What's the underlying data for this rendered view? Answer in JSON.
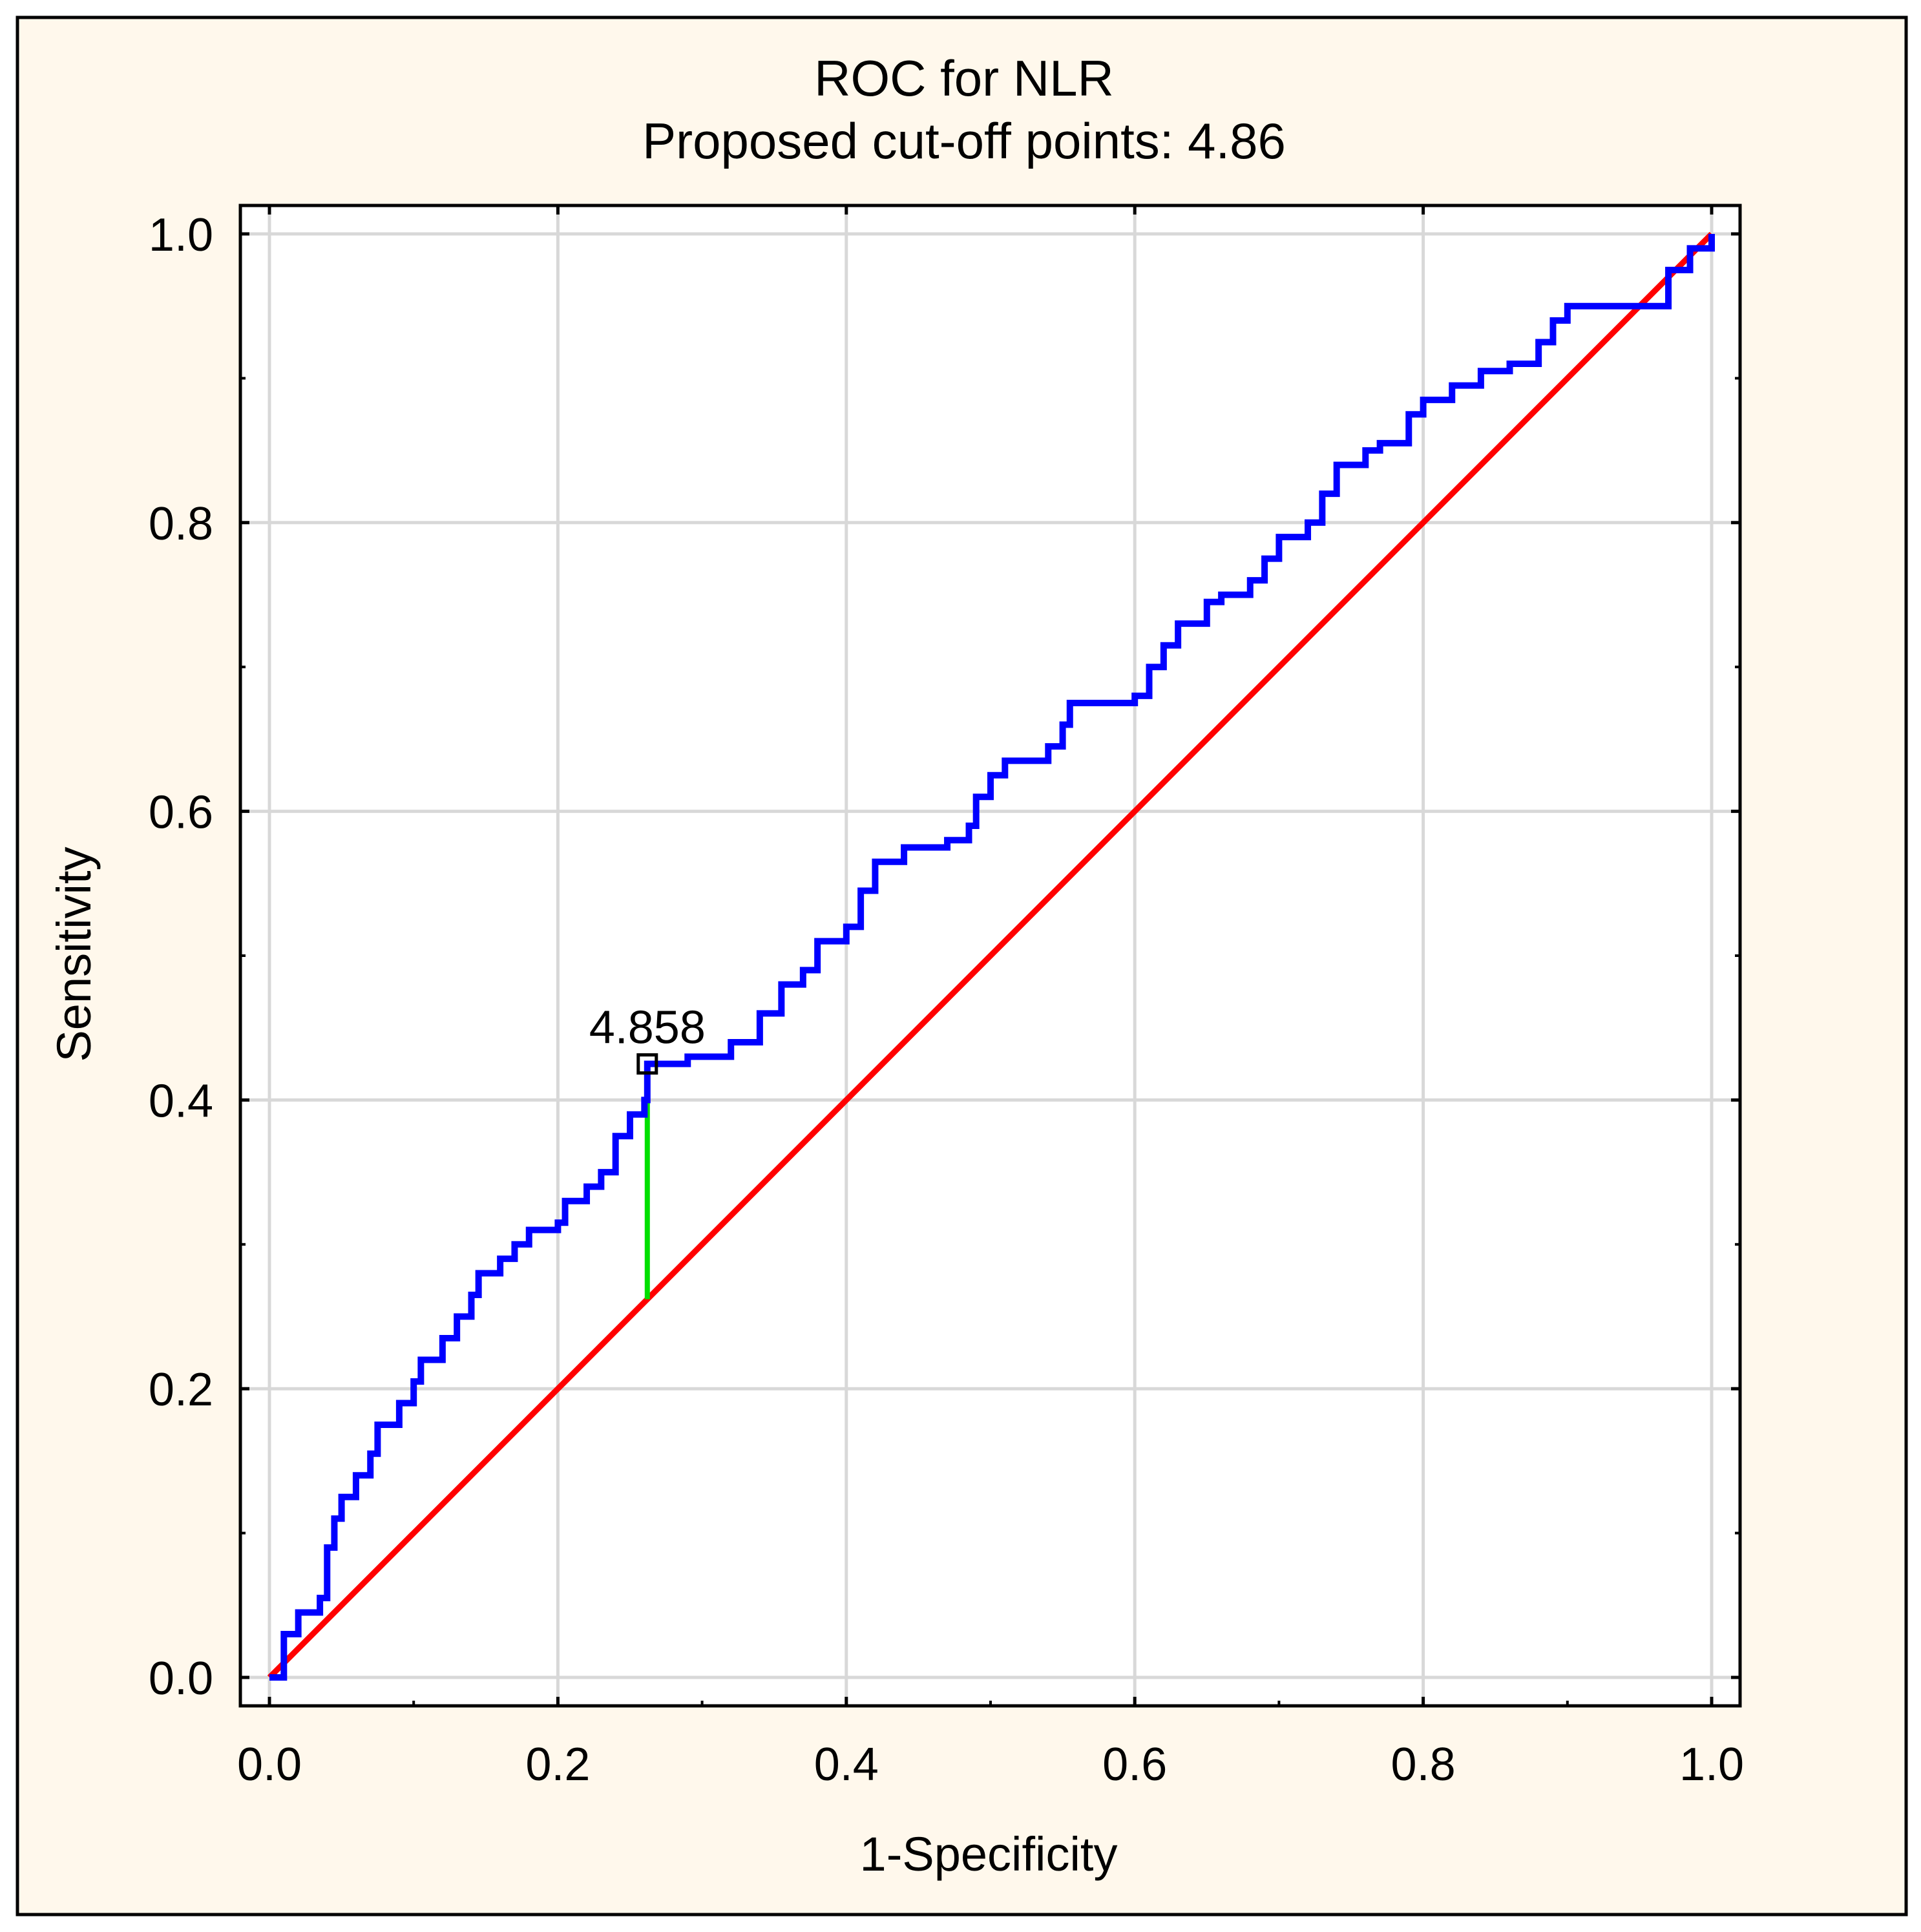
{
  "chart_data": {
    "type": "line",
    "title": "ROC for NLR",
    "subtitle": "Proposed cut-off points: 4.86",
    "xlabel": "1-Specificity",
    "ylabel": "Sensitivity",
    "xlim": [
      0,
      1
    ],
    "ylim": [
      0,
      1
    ],
    "xticks": [
      "0.0",
      "0.2",
      "0.4",
      "0.6",
      "0.8",
      "1.0"
    ],
    "yticks": [
      "0.0",
      "0.2",
      "0.4",
      "0.6",
      "0.8",
      "1.0"
    ],
    "grid": true,
    "legend": "none",
    "series": [
      {
        "role": "roc-curve",
        "color": "#0000ff",
        "points": [
          [
            0,
            0
          ],
          [
            0.01,
            0.03
          ],
          [
            0.02,
            0.045
          ],
          [
            0.035,
            0.055
          ],
          [
            0.04,
            0.09
          ],
          [
            0.045,
            0.11
          ],
          [
            0.05,
            0.125
          ],
          [
            0.06,
            0.14
          ],
          [
            0.07,
            0.155
          ],
          [
            0.075,
            0.175
          ],
          [
            0.09,
            0.19
          ],
          [
            0.1,
            0.205
          ],
          [
            0.105,
            0.22
          ],
          [
            0.12,
            0.235
          ],
          [
            0.13,
            0.25
          ],
          [
            0.14,
            0.265
          ],
          [
            0.145,
            0.28
          ],
          [
            0.16,
            0.29
          ],
          [
            0.17,
            0.3
          ],
          [
            0.18,
            0.31
          ],
          [
            0.2,
            0.315
          ],
          [
            0.205,
            0.33
          ],
          [
            0.22,
            0.34
          ],
          [
            0.23,
            0.35
          ],
          [
            0.24,
            0.375
          ],
          [
            0.25,
            0.39
          ],
          [
            0.26,
            0.4
          ],
          [
            0.262,
            0.425
          ],
          [
            0.29,
            0.43
          ],
          [
            0.32,
            0.44
          ],
          [
            0.34,
            0.46
          ],
          [
            0.355,
            0.48
          ],
          [
            0.37,
            0.49
          ],
          [
            0.38,
            0.51
          ],
          [
            0.4,
            0.52
          ],
          [
            0.41,
            0.545
          ],
          [
            0.42,
            0.565
          ],
          [
            0.44,
            0.575
          ],
          [
            0.47,
            0.58
          ],
          [
            0.485,
            0.59
          ],
          [
            0.49,
            0.61
          ],
          [
            0.5,
            0.625
          ],
          [
            0.51,
            0.635
          ],
          [
            0.54,
            0.645
          ],
          [
            0.55,
            0.66
          ],
          [
            0.555,
            0.675
          ],
          [
            0.6,
            0.68
          ],
          [
            0.61,
            0.7
          ],
          [
            0.62,
            0.715
          ],
          [
            0.63,
            0.73
          ],
          [
            0.65,
            0.745
          ],
          [
            0.66,
            0.75
          ],
          [
            0.68,
            0.76
          ],
          [
            0.69,
            0.775
          ],
          [
            0.7,
            0.79
          ],
          [
            0.72,
            0.8
          ],
          [
            0.73,
            0.82
          ],
          [
            0.74,
            0.84
          ],
          [
            0.76,
            0.85
          ],
          [
            0.77,
            0.855
          ],
          [
            0.79,
            0.875
          ],
          [
            0.8,
            0.885
          ],
          [
            0.82,
            0.895
          ],
          [
            0.84,
            0.905
          ],
          [
            0.86,
            0.91
          ],
          [
            0.88,
            0.925
          ],
          [
            0.89,
            0.94
          ],
          [
            0.9,
            0.95
          ],
          [
            0.96,
            0.95
          ],
          [
            0.97,
            0.975
          ],
          [
            0.985,
            0.99
          ],
          [
            1,
            1
          ]
        ]
      },
      {
        "role": "reference-line",
        "color": "#ff0000",
        "points": [
          [
            0,
            0
          ],
          [
            1,
            1
          ]
        ]
      }
    ],
    "cutoff": {
      "label": "4.858",
      "x": 0.262,
      "y": 0.425,
      "color": "#00e000"
    },
    "colors": {
      "background": "#fff8ec",
      "plot_background": "#ffffff",
      "grid": "#d8d8d8"
    }
  }
}
